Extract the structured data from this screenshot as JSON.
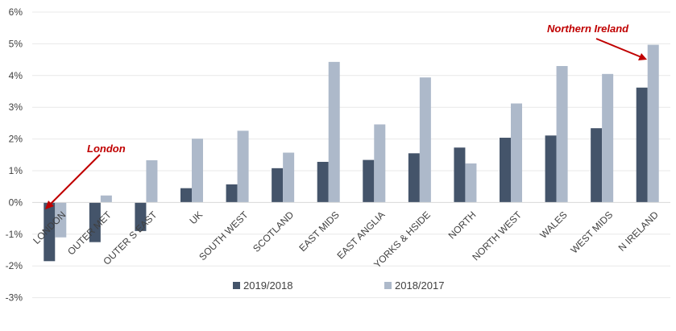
{
  "chart_data": {
    "type": "bar",
    "categories": [
      "LONDON",
      "OUTER MET",
      "OUTER S EAST",
      "UK",
      "SOUTH WEST",
      "SCOTLAND",
      "EAST MIDS",
      "EAST ANGLIA",
      "YORKS & HSIDE",
      "NORTH",
      "NORTH WEST",
      "WALES",
      "WEST MIDS",
      "N IRELAND"
    ],
    "series": [
      {
        "name": "2019/2018",
        "color": "#44546a",
        "values": [
          -1.85,
          -1.25,
          -0.9,
          0.45,
          0.57,
          1.08,
          1.28,
          1.34,
          1.55,
          1.73,
          2.04,
          2.11,
          2.34,
          3.62
        ]
      },
      {
        "name": "2018/2017",
        "color": "#adb9ca",
        "values": [
          -1.1,
          0.22,
          1.33,
          2.01,
          2.26,
          1.57,
          4.43,
          2.46,
          3.94,
          1.23,
          3.12,
          4.3,
          4.05,
          4.97
        ]
      }
    ],
    "y_ticks": [
      "6%",
      "5%",
      "4%",
      "3%",
      "2%",
      "1%",
      "0%",
      "-1%",
      "-2%",
      "-3%"
    ],
    "ylim": [
      -3,
      6
    ],
    "grid": true,
    "legend_position": "bottom",
    "annotations": [
      {
        "text": "London",
        "color": "#c00000",
        "target_category": "LONDON"
      },
      {
        "text": "Northern Ireland",
        "color": "#c00000",
        "target_category": "N IRELAND"
      }
    ]
  }
}
